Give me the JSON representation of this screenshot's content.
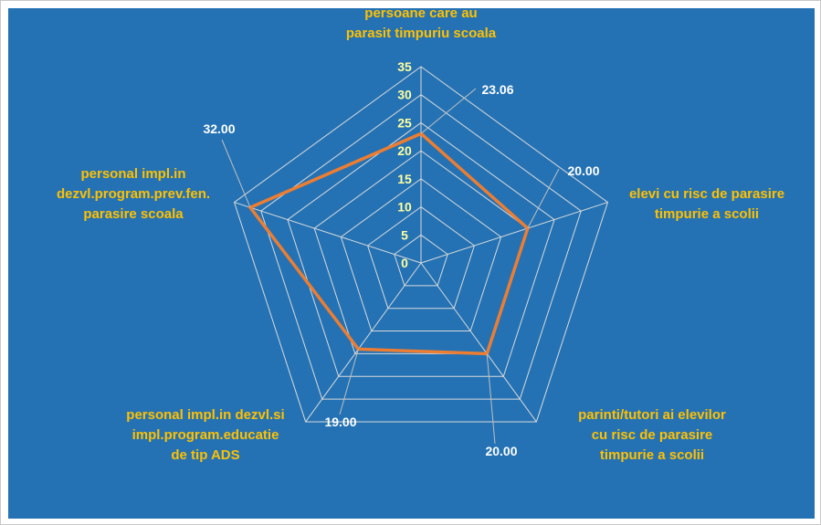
{
  "chart_data": {
    "type": "radar",
    "title": "",
    "categories": [
      [
        "persoane care au",
        "parasit timpuriu scoala"
      ],
      [
        "elevi cu risc de parasire",
        "timpurie a scolii"
      ],
      [
        "parinti/tutori ai elevilor",
        "cu risc de parasire",
        "timpurie a scolii"
      ],
      [
        "personal impl.in dezvl.si",
        "impl.program.educatie",
        "de tip ADS"
      ],
      [
        "personal impl.in",
        "dezvl.program.prev.fen.",
        "parasire scoala"
      ]
    ],
    "values": [
      23.06,
      20.0,
      20.0,
      19.0,
      32.0
    ],
    "value_labels": [
      "23.06",
      "20.00",
      "20.00",
      "19.00",
      "32.00"
    ],
    "axis_range": [
      0,
      35
    ],
    "ticks": [
      "0",
      "5",
      "10",
      "15",
      "20",
      "25",
      "30",
      "35"
    ],
    "grid": true,
    "legend": "none",
    "colors": {
      "background": "#2472b4",
      "series": "#ed7d31",
      "grid": "#d9d9d9",
      "category_text": "#ffc000",
      "tick_text": "#ffff9e",
      "value_text": "#ffffff"
    }
  }
}
